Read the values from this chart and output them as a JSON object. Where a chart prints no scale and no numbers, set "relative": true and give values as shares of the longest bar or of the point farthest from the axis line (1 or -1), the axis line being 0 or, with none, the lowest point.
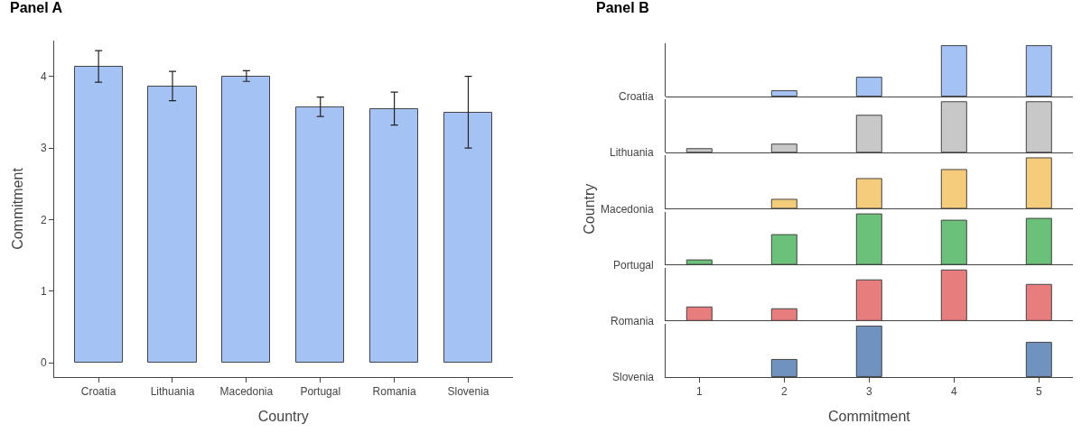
{
  "chart_data": [
    {
      "type": "bar",
      "title": "Panel A",
      "xlabel": "Country",
      "ylabel": "Commitment",
      "categories": [
        "Croatia",
        "Lithuania",
        "Macedonia",
        "Portugal",
        "Romania",
        "Slovenia"
      ],
      "values": [
        4.13,
        3.86,
        4.0,
        3.57,
        3.54,
        3.49
      ],
      "errors": [
        [
          3.92,
          4.36
        ],
        [
          3.66,
          4.07
        ],
        [
          3.93,
          4.08
        ],
        [
          3.44,
          3.71
        ],
        [
          3.32,
          3.78
        ],
        [
          3.0,
          4.0
        ]
      ],
      "color": "#a4c2f4",
      "ylim": [
        -0.2,
        4.5
      ],
      "yticks": [
        0,
        1,
        2,
        3,
        4
      ]
    },
    {
      "type": "bar",
      "title": "Panel B",
      "annotations": [
        "Country"
      ],
      "ylabel": "Croatia",
      "relative": true,
      "x": [
        1,
        2,
        3,
        4,
        5
      ],
      "values": [
        0,
        0.11,
        0.38,
        1,
        1
      ],
      "color": "#a4c2f4",
      "xlim": [
        0.6,
        5.4
      ],
      "xticks": [
        1,
        2,
        3,
        4,
        5
      ],
      "tick_labels": false
    },
    {
      "type": "bar",
      "ylabel": "Lithuania",
      "relative": true,
      "x": [
        1,
        2,
        3,
        4,
        5
      ],
      "values": [
        0.08,
        0.16,
        0.73,
        1,
        1
      ],
      "color": "#c8c8c8",
      "xlim": [
        0.6,
        5.4
      ],
      "xticks": [
        1,
        2,
        3,
        4,
        5
      ],
      "tick_labels": false
    },
    {
      "type": "bar",
      "ylabel": "Macedonia",
      "relative": true,
      "x": [
        1,
        2,
        3,
        4,
        5
      ],
      "values": [
        0,
        0.18,
        0.59,
        0.77,
        1
      ],
      "color": "#f5cb7c",
      "xlim": [
        0.6,
        5.4
      ],
      "xticks": [
        1,
        2,
        3,
        4,
        5
      ],
      "tick_labels": false
    },
    {
      "type": "bar",
      "ylabel": "Portugal",
      "relative": true,
      "x": [
        1,
        2,
        3,
        4,
        5
      ],
      "values": [
        0.09,
        0.59,
        1,
        0.88,
        0.91
      ],
      "color": "#6cc17a",
      "xlim": [
        0.6,
        5.4
      ],
      "xticks": [
        1,
        2,
        3,
        4,
        5
      ],
      "tick_labels": false
    },
    {
      "type": "bar",
      "ylabel": "Romania",
      "relative": true,
      "x": [
        1,
        2,
        3,
        4,
        5
      ],
      "values": [
        0.26,
        0.23,
        0.8,
        1,
        0.71
      ],
      "color": "#e87d7d",
      "xlim": [
        0.6,
        5.4
      ],
      "xticks": [
        1,
        2,
        3,
        4,
        5
      ],
      "tick_labels": false
    },
    {
      "type": "bar",
      "ylabel": "Slovenia",
      "relative": true,
      "xlabel": "Commitment",
      "x": [
        1,
        2,
        3,
        4,
        5
      ],
      "values": [
        0,
        0.34,
        1,
        0,
        0.67
      ],
      "color": "#6f92bf",
      "xlim": [
        0.6,
        5.4
      ],
      "xticks": [
        1,
        2,
        3,
        4,
        5
      ],
      "tick_labels": "x"
    }
  ]
}
